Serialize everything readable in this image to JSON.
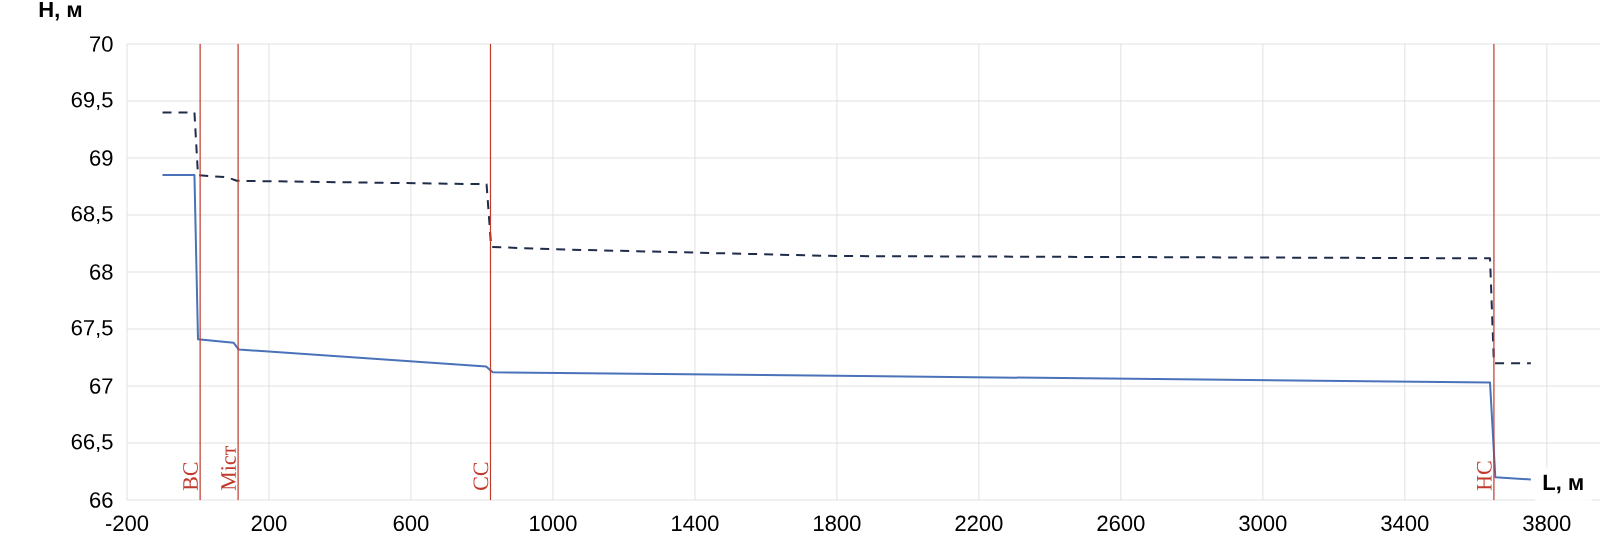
{
  "chart_data": {
    "type": "line",
    "xlabel": "L, м",
    "ylabel": "H, м",
    "xlim": [
      -200,
      3950
    ],
    "xticks": [
      -200,
      200,
      600,
      1000,
      1400,
      1800,
      2200,
      2600,
      3000,
      3400,
      3800
    ],
    "ylim": [
      66,
      70
    ],
    "yticks": [
      66,
      {
        "value": 66.5,
        "label": "66,5"
      },
      67,
      {
        "value": 67.5,
        "label": "67,5"
      },
      68,
      {
        "value": 68.5,
        "label": "68,5"
      },
      69,
      {
        "value": 69.5,
        "label": "69,5"
      },
      70
    ],
    "grid": true,
    "series": [
      {
        "color": "#4a72b8",
        "line_style": "solid",
        "x": [
          -100,
          -10,
          0,
          100,
          115,
          812,
          830,
          1800,
          3640,
          3655,
          3755
        ],
        "values": [
          68.85,
          68.85,
          67.41,
          67.38,
          67.32,
          67.17,
          67.12,
          67.09,
          67.03,
          66.2,
          66.18
        ]
      },
      {
        "color": "#1f2d4a",
        "line_style": "dashed",
        "x": [
          -100,
          -10,
          0,
          84,
          109,
          813,
          826,
          1000,
          1800,
          3640,
          3651,
          3755
        ],
        "values": [
          69.4,
          69.4,
          68.85,
          68.83,
          68.8,
          68.77,
          68.22,
          68.2,
          68.14,
          68.12,
          67.2,
          67.2
        ]
      }
    ],
    "ref_lines": [
      {
        "axis": "x",
        "value": 6,
        "label": "ВС",
        "color": "#c0392b"
      },
      {
        "axis": "x",
        "value": 113,
        "label": "Міст",
        "color": "#c0392b"
      },
      {
        "axis": "x",
        "value": 824,
        "label": "СС",
        "color": "#c0392b"
      },
      {
        "axis": "x",
        "value": 3651,
        "label": "НС",
        "color": "#c0392b"
      }
    ]
  }
}
